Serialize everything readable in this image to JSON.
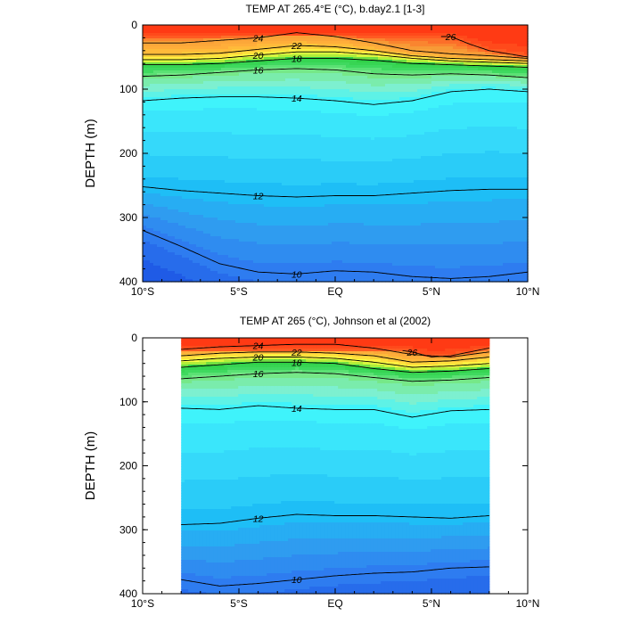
{
  "chart_data": [
    {
      "type": "heatmap",
      "title": "TEMP AT 265.4°E (°C), b.day2.1 [1-3]",
      "ylabel": "DEPTH (m)",
      "xlim": [
        -10,
        10
      ],
      "ylim": [
        0,
        400
      ],
      "x_ticks": [
        -10,
        -5,
        0,
        5,
        10
      ],
      "x_tick_labels": [
        "10°S",
        "5°S",
        "EQ",
        "5°N",
        "10°N"
      ],
      "y_ticks": [
        0,
        100,
        200,
        300,
        400
      ],
      "y_tick_labels": [
        "0",
        "100",
        "200",
        "300",
        "400"
      ],
      "data_x_range": [
        -10,
        10
      ],
      "contour_interval": 0.5,
      "isotherms": [
        {
          "temp": 26,
          "x": [
            5.5,
            6,
            7,
            8,
            9,
            10
          ],
          "depth": [
            18,
            18,
            30,
            40,
            45,
            50
          ]
        },
        {
          "temp": 24,
          "x": [
            -10,
            -8,
            -6,
            -4,
            -2,
            0,
            2,
            4,
            6,
            8,
            10
          ],
          "depth": [
            28,
            28,
            24,
            20,
            12,
            18,
            28,
            40,
            45,
            48,
            52
          ]
        },
        {
          "temp": 22,
          "x": [
            -10,
            -8,
            -6,
            -4,
            -2,
            0,
            2,
            4,
            6,
            8,
            10
          ],
          "depth": [
            46,
            46,
            44,
            38,
            32,
            34,
            40,
            48,
            52,
            54,
            56
          ]
        },
        {
          "temp": 20,
          "x": [
            -10,
            -8,
            -6,
            -4,
            -2,
            0,
            2,
            4,
            6,
            8,
            10
          ],
          "depth": [
            54,
            54,
            52,
            47,
            42,
            42,
            46,
            52,
            56,
            58,
            60
          ]
        },
        {
          "temp": 18,
          "x": [
            -10,
            -8,
            -6,
            -4,
            -2,
            0,
            2,
            4,
            6,
            8,
            10
          ],
          "depth": [
            62,
            62,
            60,
            56,
            52,
            52,
            55,
            60,
            62,
            64,
            66
          ]
        },
        {
          "temp": 16,
          "x": [
            -10,
            -8,
            -6,
            -4,
            -2,
            0,
            2,
            4,
            6,
            8,
            10
          ],
          "depth": [
            80,
            78,
            74,
            70,
            68,
            70,
            76,
            78,
            76,
            78,
            82
          ]
        },
        {
          "temp": 14,
          "x": [
            -10,
            -8,
            -6,
            -4,
            -2,
            0,
            2,
            4,
            6,
            8,
            10
          ],
          "depth": [
            118,
            114,
            112,
            112,
            114,
            118,
            124,
            118,
            104,
            100,
            104
          ]
        },
        {
          "temp": 12,
          "x": [
            -10,
            -8,
            -6,
            -4,
            -2,
            0,
            2,
            4,
            6,
            8,
            10
          ],
          "depth": [
            252,
            258,
            262,
            266,
            268,
            266,
            266,
            262,
            258,
            256,
            256
          ]
        },
        {
          "temp": 10,
          "x": [
            -10,
            -8,
            -6,
            -4,
            -2,
            0,
            2,
            4,
            6,
            8,
            10
          ],
          "depth": [
            320,
            345,
            372,
            385,
            388,
            383,
            385,
            392,
            395,
            392,
            385
          ]
        }
      ]
    },
    {
      "type": "heatmap",
      "title": "TEMP AT 265 (°C), Johnson et al (2002)",
      "ylabel": "DEPTH (m)",
      "xlim": [
        -10,
        10
      ],
      "ylim": [
        0,
        400
      ],
      "x_ticks": [
        -10,
        -5,
        0,
        5,
        10
      ],
      "x_tick_labels": [
        "10°S",
        "5°S",
        "EQ",
        "5°N",
        "10°N"
      ],
      "y_ticks": [
        0,
        100,
        200,
        300,
        400
      ],
      "y_tick_labels": [
        "0",
        "100",
        "200",
        "300",
        "400"
      ],
      "data_x_range": [
        -8,
        8
      ],
      "contour_interval": 0.5,
      "isotherms": [
        {
          "temp": 26,
          "x": [
            3.5,
            4,
            5,
            6,
            7,
            8
          ],
          "depth": [
            20,
            22,
            30,
            28,
            22,
            16
          ]
        },
        {
          "temp": 24,
          "x": [
            -8,
            -6,
            -4,
            -2,
            0,
            2,
            4,
            6,
            8
          ],
          "depth": [
            18,
            14,
            12,
            10,
            10,
            16,
            26,
            30,
            22
          ]
        },
        {
          "temp": 22,
          "x": [
            -8,
            -6,
            -4,
            -2,
            0,
            2,
            4,
            6,
            8
          ],
          "depth": [
            28,
            24,
            22,
            22,
            24,
            28,
            38,
            36,
            30
          ]
        },
        {
          "temp": 20,
          "x": [
            -8,
            -6,
            -4,
            -2,
            0,
            2,
            4,
            6,
            8
          ],
          "depth": [
            36,
            32,
            30,
            30,
            32,
            38,
            46,
            44,
            40
          ]
        },
        {
          "temp": 18,
          "x": [
            -8,
            -6,
            -4,
            -2,
            0,
            2,
            4,
            6,
            8
          ],
          "depth": [
            46,
            42,
            38,
            38,
            40,
            48,
            54,
            52,
            48
          ]
        },
        {
          "temp": 16,
          "x": [
            -8,
            -6,
            -4,
            -2,
            0,
            2,
            4,
            6,
            8
          ],
          "depth": [
            64,
            60,
            56,
            54,
            56,
            62,
            68,
            66,
            62
          ]
        },
        {
          "temp": 14,
          "x": [
            -8,
            -6,
            -4,
            -2,
            0,
            2,
            4,
            6,
            8
          ],
          "depth": [
            110,
            112,
            106,
            110,
            112,
            112,
            124,
            114,
            112
          ]
        },
        {
          "temp": 12,
          "x": [
            -8,
            -6,
            -4,
            -2,
            0,
            2,
            4,
            6,
            8
          ],
          "depth": [
            292,
            290,
            282,
            276,
            278,
            278,
            280,
            282,
            278
          ]
        },
        {
          "temp": 10,
          "x": [
            -8,
            -6,
            -4,
            -2,
            0,
            2,
            4,
            6,
            8
          ],
          "depth": [
            378,
            388,
            384,
            378,
            372,
            368,
            366,
            360,
            358
          ]
        }
      ]
    }
  ],
  "colormap": [
    {
      "t": 9.0,
      "color": "#1f5be6"
    },
    {
      "t": 10.0,
      "color": "#2e7cf0"
    },
    {
      "t": 11.0,
      "color": "#2f9cf0"
    },
    {
      "t": 12.0,
      "color": "#1ebef6"
    },
    {
      "t": 13.0,
      "color": "#35d9fa"
    },
    {
      "t": 14.0,
      "color": "#3ff3fb"
    },
    {
      "t": 15.0,
      "color": "#7df0d0"
    },
    {
      "t": 16.0,
      "color": "#76e888"
    },
    {
      "t": 17.0,
      "color": "#3fd95f"
    },
    {
      "t": 18.0,
      "color": "#2fd147"
    },
    {
      "t": 19.0,
      "color": "#b0ee3a"
    },
    {
      "t": 20.0,
      "color": "#ffff44"
    },
    {
      "t": 21.5,
      "color": "#ffd23a"
    },
    {
      "t": 23.0,
      "color": "#ffae3a"
    },
    {
      "t": 24.5,
      "color": "#f79a36"
    },
    {
      "t": 26.0,
      "color": "#ff5a22"
    },
    {
      "t": 27.0,
      "color": "#ff3a14"
    }
  ]
}
